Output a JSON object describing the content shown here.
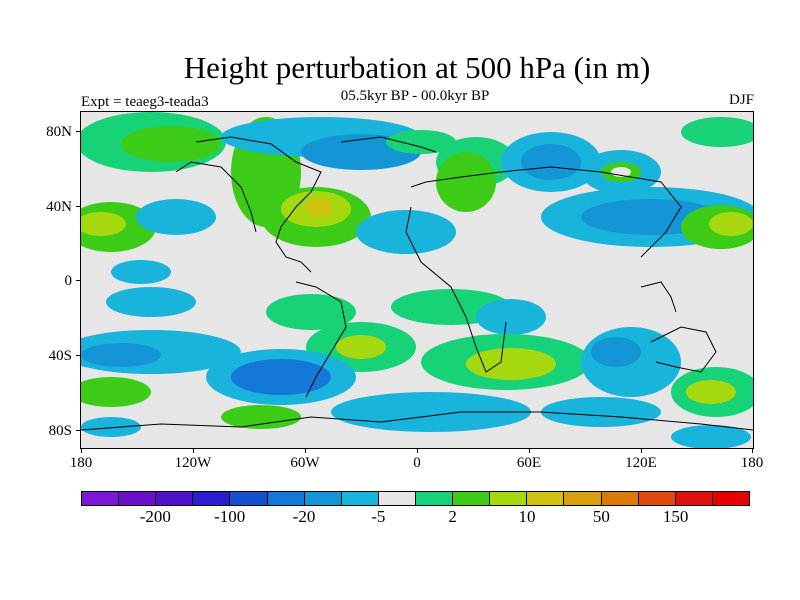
{
  "title": "Height perturbation at 500 hPa (in m)",
  "subtitle": "05.5kyr BP - 00.0kyr BP",
  "left_label": "Expt = teaeg3-teada3",
  "right_label": "DJF",
  "lat_ticks": [
    "80N",
    "40N",
    "0",
    "40S",
    "80S"
  ],
  "lon_ticks": [
    "180",
    "120W",
    "60W",
    "0",
    "60E",
    "120E",
    "180"
  ],
  "colorbar": {
    "colors": [
      "#7a18d8",
      "#6a10c8",
      "#4e10c8",
      "#2a1ed0",
      "#1450d0",
      "#1478d8",
      "#1496d6",
      "#18b4dc",
      "#e6e6e6",
      "#18d278",
      "#3ccc18",
      "#a6d810",
      "#d2c210",
      "#d8a00c",
      "#dc7a08",
      "#e04a10",
      "#e01010",
      "#e80000"
    ],
    "labels": [
      "-200",
      "-100",
      "-20",
      "-5",
      "2",
      "10",
      "50",
      "150"
    ]
  },
  "palette": {
    "neg_weak": "#18b4dc",
    "neg_mid": "#1496d6",
    "neg_strong": "#1478d8",
    "neg_deep": "#1450d0",
    "zero": "#e6e6e6",
    "pos_weak": "#18d278",
    "pos_mid": "#3ccc18",
    "pos_strong": "#a6d810",
    "pos_deep": "#d2c210",
    "pos_core": "#d8a00c"
  }
}
